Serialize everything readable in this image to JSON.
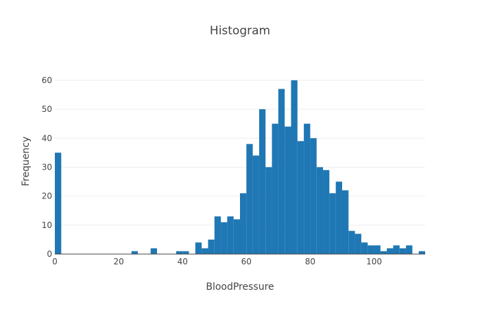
{
  "chart_data": {
    "type": "bar",
    "title": "Histogram",
    "xlabel": "BloodPressure",
    "ylabel": "Frequency",
    "xlim": [
      0,
      116
    ],
    "ylim": [
      0,
      64
    ],
    "bin_width": 2,
    "x_ticks": [
      0,
      20,
      40,
      60,
      80,
      100
    ],
    "y_ticks": [
      0,
      10,
      20,
      30,
      40,
      50,
      60
    ],
    "grid": true,
    "color": "#1f77b4",
    "bins": [
      {
        "x0": 0,
        "x1": 2,
        "count": 35
      },
      {
        "x0": 24,
        "x1": 26,
        "count": 1
      },
      {
        "x0": 30,
        "x1": 32,
        "count": 2
      },
      {
        "x0": 38,
        "x1": 40,
        "count": 1
      },
      {
        "x0": 40,
        "x1": 42,
        "count": 1
      },
      {
        "x0": 44,
        "x1": 46,
        "count": 4
      },
      {
        "x0": 46,
        "x1": 48,
        "count": 2
      },
      {
        "x0": 48,
        "x1": 50,
        "count": 5
      },
      {
        "x0": 50,
        "x1": 52,
        "count": 13
      },
      {
        "x0": 52,
        "x1": 54,
        "count": 11
      },
      {
        "x0": 54,
        "x1": 56,
        "count": 13
      },
      {
        "x0": 56,
        "x1": 58,
        "count": 12
      },
      {
        "x0": 58,
        "x1": 60,
        "count": 21
      },
      {
        "x0": 60,
        "x1": 62,
        "count": 38
      },
      {
        "x0": 62,
        "x1": 64,
        "count": 34
      },
      {
        "x0": 64,
        "x1": 66,
        "count": 50
      },
      {
        "x0": 66,
        "x1": 68,
        "count": 30
      },
      {
        "x0": 68,
        "x1": 70,
        "count": 45
      },
      {
        "x0": 70,
        "x1": 72,
        "count": 57
      },
      {
        "x0": 72,
        "x1": 74,
        "count": 44
      },
      {
        "x0": 74,
        "x1": 76,
        "count": 60
      },
      {
        "x0": 76,
        "x1": 78,
        "count": 39
      },
      {
        "x0": 78,
        "x1": 80,
        "count": 45
      },
      {
        "x0": 80,
        "x1": 82,
        "count": 40
      },
      {
        "x0": 82,
        "x1": 84,
        "count": 30
      },
      {
        "x0": 84,
        "x1": 86,
        "count": 29
      },
      {
        "x0": 86,
        "x1": 88,
        "count": 21
      },
      {
        "x0": 88,
        "x1": 90,
        "count": 25
      },
      {
        "x0": 90,
        "x1": 92,
        "count": 22
      },
      {
        "x0": 92,
        "x1": 94,
        "count": 8
      },
      {
        "x0": 94,
        "x1": 96,
        "count": 7
      },
      {
        "x0": 96,
        "x1": 98,
        "count": 4
      },
      {
        "x0": 98,
        "x1": 100,
        "count": 3
      },
      {
        "x0": 100,
        "x1": 102,
        "count": 3
      },
      {
        "x0": 102,
        "x1": 104,
        "count": 1
      },
      {
        "x0": 104,
        "x1": 106,
        "count": 2
      },
      {
        "x0": 106,
        "x1": 108,
        "count": 3
      },
      {
        "x0": 108,
        "x1": 110,
        "count": 2
      },
      {
        "x0": 110,
        "x1": 112,
        "count": 3
      },
      {
        "x0": 114,
        "x1": 116,
        "count": 1
      }
    ]
  }
}
